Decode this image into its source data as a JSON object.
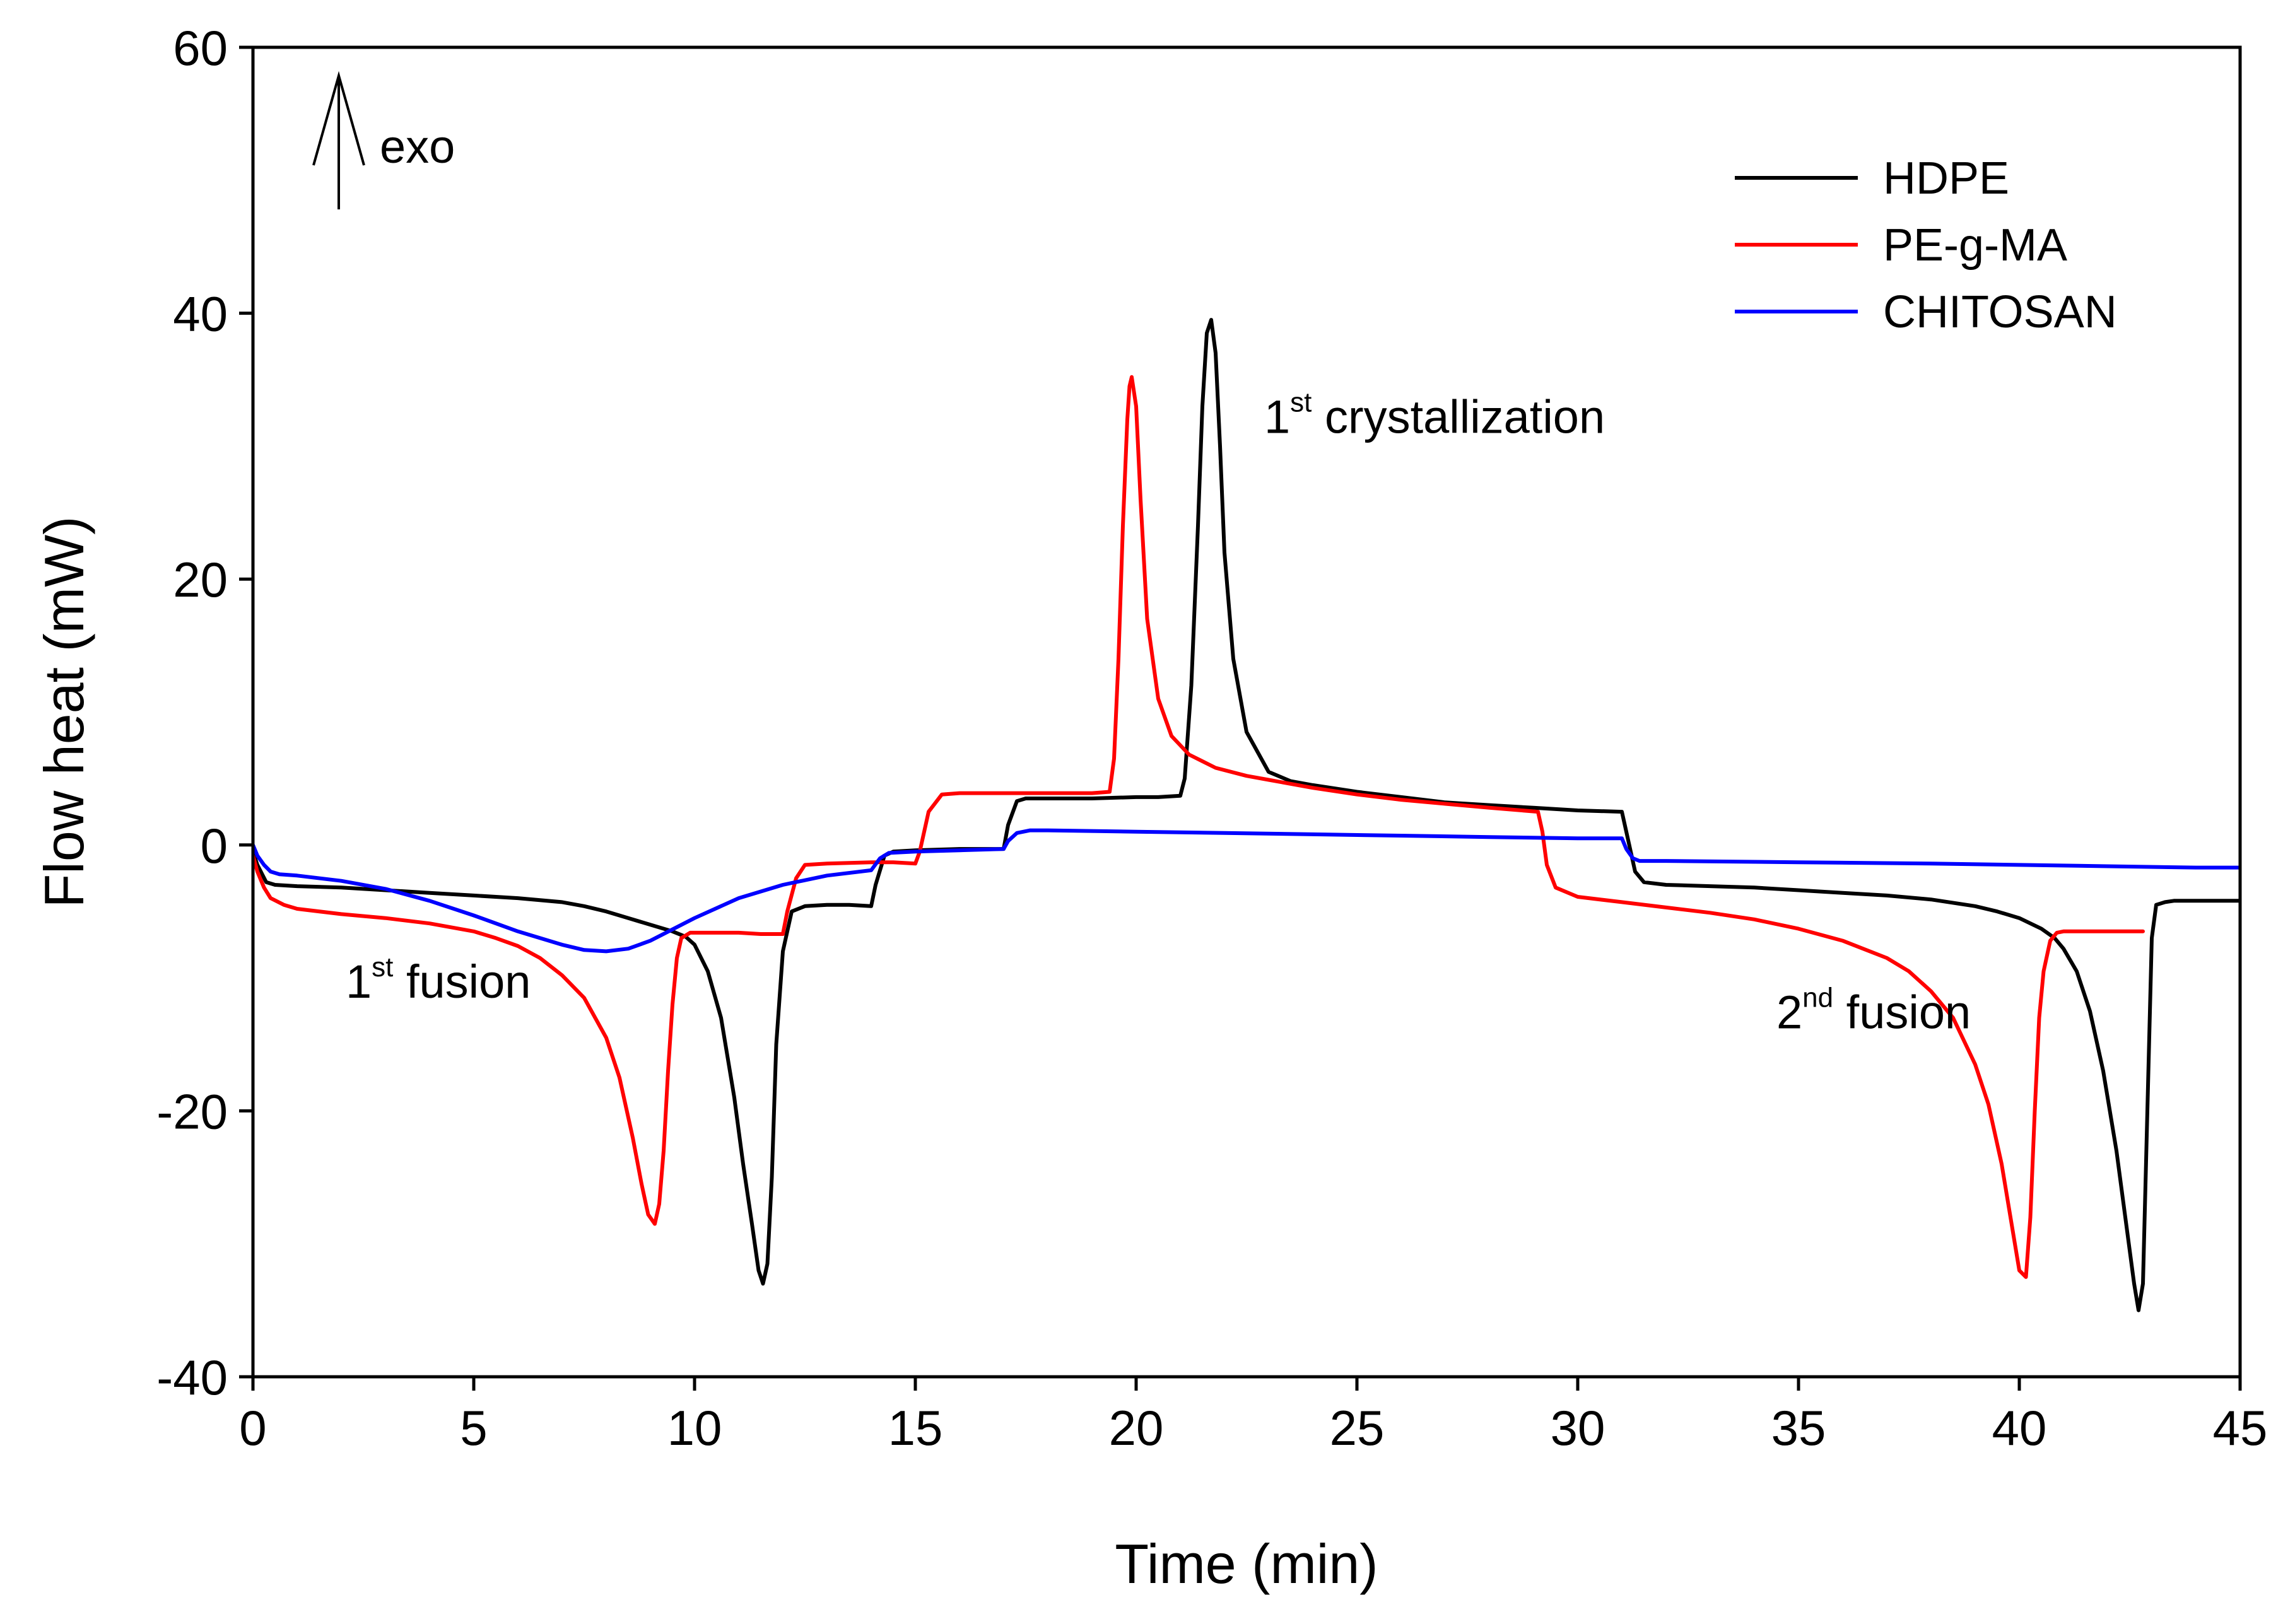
{
  "chart_data": {
    "type": "line",
    "title": "",
    "xlabel": "Time (min)",
    "ylabel": "Flow heat (mW)",
    "xlim": [
      0,
      45
    ],
    "ylim": [
      -40,
      60
    ],
    "xticks": [
      0,
      5,
      10,
      15,
      20,
      25,
      30,
      35,
      40,
      45
    ],
    "yticks": [
      -40,
      -20,
      0,
      20,
      40,
      60
    ],
    "xtick_labels": [
      "0",
      "5",
      "10",
      "15",
      "20",
      "25",
      "30",
      "35",
      "40",
      "45"
    ],
    "ytick_labels": [
      "-40",
      "-20",
      "0",
      "20",
      "40",
      "60"
    ],
    "grid": false,
    "legend_position": "top-right",
    "exo_label": "exo",
    "annotations": [
      {
        "id": "fusion1",
        "base": "1",
        "sup": "st",
        "text": " fusion",
        "x": 2.1,
        "y": -11.5
      },
      {
        "id": "cryst1",
        "base": "1",
        "sup": "st",
        "text": " crystallization",
        "x": 22.9,
        "y": 31.0
      },
      {
        "id": "fusion2",
        "base": "2",
        "sup": "nd",
        "text": " fusion",
        "x": 34.5,
        "y": -13.8
      }
    ],
    "series": [
      {
        "name": "HDPE",
        "color": "#000000",
        "x": [
          0,
          0.1,
          0.3,
          0.5,
          1,
          2,
          3,
          4,
          5,
          6,
          7,
          7.5,
          8,
          8.5,
          9,
          9.5,
          9.8,
          10,
          10.3,
          10.6,
          10.9,
          11.1,
          11.3,
          11.45,
          11.55,
          11.65,
          11.75,
          11.85,
          12,
          12.2,
          12.5,
          13,
          13.5,
          14,
          14.1,
          14.3,
          14.5,
          15,
          16,
          16.5,
          17,
          17.1,
          17.3,
          17.5,
          18,
          19,
          20,
          20.5,
          21,
          21.1,
          21.25,
          21.4,
          21.5,
          21.6,
          21.7,
          21.8,
          21.9,
          22,
          22.2,
          22.5,
          23,
          23.5,
          24,
          25,
          26,
          27,
          28,
          29,
          30,
          31,
          31.1,
          31.3,
          31.5,
          32,
          33,
          34,
          35,
          36,
          37,
          38,
          39,
          39.5,
          40,
          40.5,
          40.8,
          41,
          41.3,
          41.6,
          41.9,
          42.2,
          42.4,
          42.6,
          42.7,
          42.8,
          42.9,
          43.0,
          43.1,
          43.3,
          43.5,
          44,
          44.5,
          45
        ],
        "y": [
          -0.5,
          -1.5,
          -2.8,
          -3.0,
          -3.1,
          -3.2,
          -3.4,
          -3.6,
          -3.8,
          -4.0,
          -4.3,
          -4.6,
          -5.0,
          -5.5,
          -6.0,
          -6.5,
          -6.9,
          -7.5,
          -9.5,
          -13.0,
          -19.0,
          -24.0,
          -28.5,
          -32.0,
          -33.0,
          -31.5,
          -25.0,
          -15.0,
          -8.0,
          -5.0,
          -4.6,
          -4.5,
          -4.5,
          -4.6,
          -3.0,
          -0.8,
          -0.5,
          -0.4,
          -0.3,
          -0.3,
          -0.3,
          1.5,
          3.3,
          3.5,
          3.5,
          3.5,
          3.6,
          3.6,
          3.7,
          5.0,
          12.0,
          24.0,
          33.0,
          38.5,
          39.5,
          37.0,
          30.0,
          22.0,
          14.0,
          8.5,
          5.5,
          4.8,
          4.5,
          4.0,
          3.6,
          3.2,
          3.0,
          2.8,
          2.6,
          2.5,
          1.0,
          -2.0,
          -2.8,
          -3.0,
          -3.1,
          -3.2,
          -3.4,
          -3.6,
          -3.8,
          -4.1,
          -4.6,
          -5.0,
          -5.5,
          -6.3,
          -7.0,
          -7.8,
          -9.5,
          -12.5,
          -17.0,
          -23.0,
          -28.0,
          -33.0,
          -35.0,
          -33.0,
          -20.0,
          -7.0,
          -4.5,
          -4.3,
          -4.2,
          -4.2,
          -4.2,
          -4.2
        ]
      },
      {
        "name": "PE-g-MA",
        "color": "#ff0000",
        "x": [
          0,
          0.1,
          0.25,
          0.4,
          0.7,
          1,
          2,
          3,
          4,
          5,
          5.5,
          6,
          6.5,
          7,
          7.5,
          8,
          8.3,
          8.6,
          8.8,
          8.95,
          9.1,
          9.2,
          9.3,
          9.4,
          9.5,
          9.6,
          9.7,
          9.9,
          10.2,
          10.6,
          11,
          11.5,
          12.0,
          12.1,
          12.3,
          12.5,
          13,
          14,
          14.5,
          15.0,
          15.1,
          15.3,
          15.6,
          16,
          17,
          18,
          19,
          19.4,
          19.5,
          19.6,
          19.7,
          19.8,
          19.85,
          19.9,
          20.0,
          20.1,
          20.25,
          20.5,
          20.8,
          21.2,
          21.8,
          22.5,
          23,
          24,
          25,
          26,
          27,
          28,
          29.1,
          29.2,
          29.3,
          29.5,
          30,
          31,
          32,
          33,
          34,
          35,
          36,
          37,
          37.5,
          38,
          38.5,
          39,
          39.3,
          39.6,
          39.8,
          40.0,
          40.15,
          40.25,
          40.35,
          40.45,
          40.55,
          40.7,
          40.85,
          41.0,
          41.5,
          42,
          42.8
        ],
        "y": [
          -0.8,
          -2.0,
          -3.2,
          -4.0,
          -4.5,
          -4.8,
          -5.2,
          -5.5,
          -5.9,
          -6.5,
          -7.0,
          -7.6,
          -8.5,
          -9.8,
          -11.5,
          -14.5,
          -17.5,
          -22.0,
          -25.5,
          -27.8,
          -28.5,
          -27.0,
          -23.0,
          -17.0,
          -12.0,
          -8.5,
          -7.0,
          -6.6,
          -6.6,
          -6.6,
          -6.6,
          -6.7,
          -6.7,
          -5.0,
          -2.5,
          -1.5,
          -1.4,
          -1.3,
          -1.3,
          -1.4,
          -0.5,
          2.5,
          3.8,
          3.9,
          3.9,
          3.9,
          3.9,
          4.0,
          6.5,
          14.0,
          24.0,
          32.0,
          34.5,
          35.2,
          33.0,
          26.0,
          17.0,
          11.0,
          8.2,
          6.8,
          5.8,
          5.2,
          4.9,
          4.3,
          3.8,
          3.4,
          3.1,
          2.8,
          2.5,
          1.0,
          -1.5,
          -3.2,
          -3.9,
          -4.3,
          -4.7,
          -5.1,
          -5.6,
          -6.3,
          -7.2,
          -8.5,
          -9.5,
          -11.0,
          -13.0,
          -16.5,
          -19.5,
          -24.0,
          -28.0,
          -32.0,
          -32.5,
          -28.0,
          -20.0,
          -13.0,
          -9.5,
          -7.2,
          -6.6,
          -6.5,
          -6.5,
          -6.5,
          -6.5
        ]
      },
      {
        "name": "CHITOSAN",
        "color": "#0000ff",
        "x": [
          0,
          0.1,
          0.25,
          0.4,
          0.6,
          1,
          2,
          3,
          4,
          5,
          6,
          7,
          7.5,
          8,
          8.5,
          9,
          10,
          11,
          12,
          13,
          14,
          14.2,
          14.4,
          15,
          16,
          17,
          17.1,
          17.3,
          17.6,
          18,
          20,
          22,
          24,
          26,
          28,
          30,
          31,
          31.1,
          31.25,
          31.4,
          32,
          35,
          38,
          40,
          42,
          44,
          45
        ],
        "y": [
          0,
          -0.8,
          -1.5,
          -2.0,
          -2.2,
          -2.3,
          -2.7,
          -3.3,
          -4.2,
          -5.3,
          -6.5,
          -7.5,
          -7.9,
          -8.0,
          -7.8,
          -7.2,
          -5.5,
          -4.0,
          -3.0,
          -2.3,
          -1.9,
          -1.0,
          -0.6,
          -0.5,
          -0.4,
          -0.3,
          0.3,
          0.9,
          1.1,
          1.1,
          1.0,
          0.9,
          0.8,
          0.7,
          0.6,
          0.5,
          0.5,
          -0.3,
          -1.0,
          -1.2,
          -1.2,
          -1.3,
          -1.4,
          -1.5,
          -1.6,
          -1.7,
          -1.7
        ]
      }
    ]
  }
}
